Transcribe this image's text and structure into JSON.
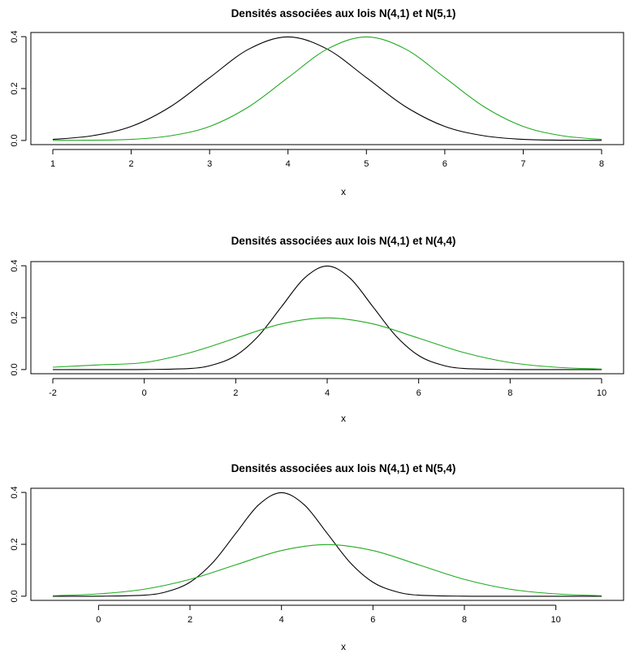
{
  "chart_data": [
    {
      "type": "line",
      "title": "Densités associées aux lois N(4,1) et N(5,1)",
      "xlabel": "x",
      "ylabel": "",
      "xlim": [
        1,
        8
      ],
      "ylim": [
        0,
        0.4
      ],
      "xticks": [
        "1",
        "2",
        "3",
        "4",
        "5",
        "6",
        "7",
        "8"
      ],
      "xtick_values": [
        1,
        2,
        3,
        4,
        5,
        6,
        7,
        8
      ],
      "yticks": [
        "0.0",
        "0.2",
        "0.4"
      ],
      "ytick_values": [
        0,
        0.2,
        0.4
      ],
      "series": [
        {
          "color": "#000000",
          "x": [
            1,
            1.5,
            2,
            2.5,
            3,
            3.5,
            4,
            4.5,
            5,
            5.5,
            6,
            6.5,
            7,
            7.5,
            8
          ],
          "y": [
            0.004,
            0.018,
            0.054,
            0.13,
            0.242,
            0.352,
            0.399,
            0.352,
            0.242,
            0.13,
            0.054,
            0.018,
            0.004,
            0.001,
            0.0001
          ]
        },
        {
          "color": "#22aa22",
          "x": [
            1,
            1.5,
            2,
            2.5,
            3,
            3.5,
            4,
            4.5,
            5,
            5.5,
            6,
            6.5,
            7,
            7.5,
            8
          ],
          "y": [
            0.0001,
            0.001,
            0.004,
            0.018,
            0.054,
            0.13,
            0.242,
            0.352,
            0.399,
            0.352,
            0.242,
            0.13,
            0.054,
            0.018,
            0.004
          ]
        }
      ]
    },
    {
      "type": "line",
      "title": "Densités associées aux lois N(4,1) et N(4,4)",
      "xlabel": "x",
      "ylabel": "",
      "xlim": [
        -2,
        10
      ],
      "ylim": [
        0,
        0.4
      ],
      "xticks": [
        "-2",
        "0",
        "2",
        "4",
        "6",
        "8",
        "10"
      ],
      "xtick_values": [
        -2,
        0,
        2,
        4,
        6,
        8,
        10
      ],
      "yticks": [
        "0.0",
        "0.2",
        "0.4"
      ],
      "ytick_values": [
        0,
        0.2,
        0.4
      ],
      "series": [
        {
          "color": "#000000",
          "x": [
            -2,
            -1,
            0,
            1,
            1.5,
            2,
            2.5,
            3,
            3.5,
            4,
            4.5,
            5,
            5.5,
            6,
            6.5,
            7,
            8,
            9,
            10
          ],
          "y": [
            0,
            0,
            0.0001,
            0.004,
            0.018,
            0.054,
            0.13,
            0.242,
            0.352,
            0.399,
            0.352,
            0.242,
            0.13,
            0.054,
            0.018,
            0.004,
            0.0001,
            0,
            0
          ]
        },
        {
          "color": "#22aa22",
          "x": [
            -2,
            -1,
            0,
            1,
            2,
            3,
            4,
            5,
            6,
            7,
            8,
            9,
            10
          ],
          "y": [
            0.009,
            0.018,
            0.027,
            0.065,
            0.121,
            0.176,
            0.199,
            0.176,
            0.121,
            0.065,
            0.027,
            0.009,
            0.002
          ]
        }
      ]
    },
    {
      "type": "line",
      "title": "Densités associées aux lois N(4,1) et N(5,4)",
      "xlabel": "x",
      "ylabel": "",
      "xlim": [
        -1,
        11
      ],
      "ylim": [
        0,
        0.4
      ],
      "xticks": [
        "0",
        "2",
        "4",
        "6",
        "8",
        "10"
      ],
      "xtick_values": [
        0,
        2,
        4,
        6,
        8,
        10
      ],
      "yticks": [
        "0.0",
        "0.2",
        "0.4"
      ],
      "ytick_values": [
        0,
        0.2,
        0.4
      ],
      "series": [
        {
          "color": "#000000",
          "x": [
            -1,
            0,
            1,
            1.5,
            2,
            2.5,
            3,
            3.5,
            4,
            4.5,
            5,
            5.5,
            6,
            6.5,
            7,
            8,
            9,
            10,
            11
          ],
          "y": [
            0,
            0.0001,
            0.004,
            0.018,
            0.054,
            0.13,
            0.242,
            0.352,
            0.399,
            0.352,
            0.242,
            0.13,
            0.054,
            0.018,
            0.004,
            0.0001,
            0,
            0,
            0
          ]
        },
        {
          "color": "#22aa22",
          "x": [
            -1,
            0,
            1,
            2,
            3,
            4,
            5,
            6,
            7,
            8,
            9,
            10,
            11
          ],
          "y": [
            0.002,
            0.009,
            0.027,
            0.065,
            0.121,
            0.176,
            0.199,
            0.176,
            0.121,
            0.065,
            0.027,
            0.009,
            0.002
          ]
        }
      ]
    }
  ]
}
